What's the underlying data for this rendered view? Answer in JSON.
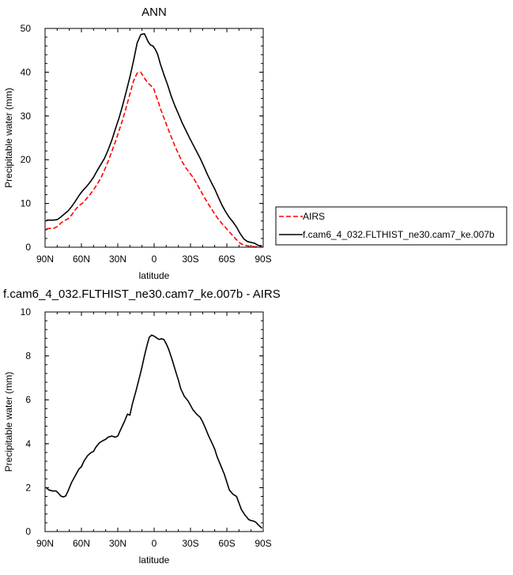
{
  "chart_data": [
    {
      "type": "line",
      "title": "ANN",
      "xlabel": "latitude",
      "ylabel": "Precipitable water (mm)",
      "xlim": [
        90,
        -90
      ],
      "ylim": [
        0,
        50
      ],
      "x_ticks": [
        {
          "value": 90,
          "label": "90N"
        },
        {
          "value": 60,
          "label": "60N"
        },
        {
          "value": 30,
          "label": "30N"
        },
        {
          "value": 0,
          "label": "0"
        },
        {
          "value": -30,
          "label": "30S"
        },
        {
          "value": -60,
          "label": "60S"
        },
        {
          "value": -90,
          "label": "90S"
        }
      ],
      "y_ticks": [
        0,
        10,
        20,
        30,
        40,
        50
      ],
      "grid": false,
      "legend_position": "right",
      "series": [
        {
          "name": "AIRS",
          "color": "#ff0000",
          "dash": "dashed",
          "x": [
            89,
            86,
            83,
            80,
            77,
            74,
            71,
            68,
            65,
            62,
            59,
            56,
            53,
            50,
            47,
            44,
            41,
            38,
            35,
            32,
            29,
            26,
            23,
            20,
            17,
            14,
            11,
            8,
            5,
            3,
            1,
            0,
            -1,
            -3,
            -5,
            -8,
            -11,
            -14,
            -17,
            -20,
            -23,
            -26,
            -29,
            -32,
            -35,
            -38,
            -41,
            -44,
            -47,
            -50,
            -53,
            -56,
            -59,
            -62,
            -65,
            -68,
            -71,
            -74,
            -77,
            -80,
            -83,
            -86,
            -89
          ],
          "y": [
            4.2,
            4.3,
            4.3,
            4.7,
            5.5,
            6.1,
            6.5,
            7.4,
            8.6,
            9.5,
            10.1,
            11.0,
            12.0,
            13.1,
            14.4,
            15.8,
            17.6,
            19.6,
            21.8,
            24.1,
            26.6,
            29.1,
            32.0,
            35.0,
            38.0,
            39.8,
            40.0,
            38.6,
            37.5,
            37.0,
            36.5,
            36.0,
            35.0,
            33.6,
            31.8,
            29.6,
            27.4,
            25.3,
            23.2,
            21.4,
            19.6,
            18.2,
            17.1,
            16.0,
            14.6,
            13.1,
            11.6,
            10.2,
            8.9,
            7.6,
            6.4,
            5.4,
            4.5,
            3.5,
            2.6,
            1.7,
            0.9,
            0.5,
            0.3,
            0.2,
            0.1,
            0.1,
            0.1
          ]
        },
        {
          "name": "f.cam6_4_032.FLTHIST_ne30.cam7_ke.007b",
          "color": "#000000",
          "dash": "solid",
          "x": [
            89,
            86,
            83,
            80,
            77,
            74,
            71,
            68,
            65,
            62,
            59,
            56,
            53,
            50,
            47,
            44,
            41,
            38,
            35,
            32,
            29,
            26,
            23,
            20,
            17,
            14,
            11,
            8,
            5,
            3,
            1,
            0,
            -1,
            -3,
            -5,
            -8,
            -11,
            -14,
            -17,
            -20,
            -23,
            -26,
            -29,
            -32,
            -35,
            -38,
            -41,
            -44,
            -47,
            -50,
            -53,
            -56,
            -59,
            -62,
            -65,
            -68,
            -71,
            -74,
            -77,
            -80,
            -83,
            -86,
            -89
          ],
          "y": [
            6.2,
            6.2,
            6.2,
            6.3,
            6.9,
            7.6,
            8.3,
            9.3,
            10.5,
            11.8,
            12.9,
            13.8,
            14.8,
            16.0,
            17.5,
            18.9,
            20.3,
            22.2,
            24.4,
            27.0,
            29.5,
            32.4,
            35.6,
            38.9,
            42.6,
            46.7,
            48.6,
            48.8,
            47.0,
            46.2,
            46.0,
            45.6,
            45.2,
            44.0,
            42.0,
            39.5,
            37.2,
            34.6,
            32.4,
            30.5,
            28.5,
            26.8,
            25.1,
            23.5,
            21.9,
            20.3,
            18.5,
            16.6,
            14.9,
            13.3,
            11.4,
            9.6,
            8.1,
            6.8,
            5.8,
            4.6,
            3.1,
            1.9,
            1.3,
            1.1,
            0.9,
            0.4,
            0.3
          ]
        }
      ]
    },
    {
      "type": "line",
      "title": "f.cam6_4_032.FLTHIST_ne30.cam7_ke.007b - AIRS",
      "xlabel": "latitude",
      "ylabel": "Precipitable water (mm)",
      "xlim": [
        90,
        -90
      ],
      "ylim": [
        0,
        10
      ],
      "x_ticks": [
        {
          "value": 90,
          "label": "90N"
        },
        {
          "value": 60,
          "label": "60N"
        },
        {
          "value": 30,
          "label": "30N"
        },
        {
          "value": 0,
          "label": "0"
        },
        {
          "value": -30,
          "label": "30S"
        },
        {
          "value": -60,
          "label": "60S"
        },
        {
          "value": -90,
          "label": "90S"
        }
      ],
      "y_ticks": [
        0,
        2,
        4,
        6,
        8,
        10
      ],
      "grid": false,
      "series": [
        {
          "name": "",
          "color": "#000000",
          "dash": "solid",
          "x": [
            89,
            87,
            84,
            81,
            79,
            77,
            75,
            73,
            71,
            68,
            65,
            62,
            60,
            58,
            55,
            52,
            50,
            48,
            45,
            42,
            40,
            38,
            35,
            32,
            30,
            28,
            25,
            22,
            20,
            18,
            15,
            12,
            10,
            8,
            6,
            4,
            2,
            0,
            -2,
            -4,
            -6,
            -8,
            -10,
            -12,
            -15,
            -18,
            -20,
            -22,
            -25,
            -28,
            -30,
            -32,
            -35,
            -38,
            -40,
            -42,
            -45,
            -48,
            -50,
            -52,
            -55,
            -58,
            -60,
            -62,
            -65,
            -68,
            -70,
            -72,
            -75,
            -78,
            -80,
            -82,
            -84,
            -86,
            -88,
            -89
          ],
          "y": [
            2.0,
            1.9,
            1.85,
            1.85,
            1.75,
            1.62,
            1.58,
            1.62,
            1.85,
            2.25,
            2.55,
            2.85,
            2.95,
            3.2,
            3.45,
            3.6,
            3.65,
            3.85,
            4.05,
            4.15,
            4.2,
            4.3,
            4.35,
            4.3,
            4.35,
            4.6,
            4.95,
            5.35,
            5.3,
            5.8,
            6.4,
            7.05,
            7.5,
            8.0,
            8.45,
            8.85,
            8.95,
            8.9,
            8.82,
            8.75,
            8.78,
            8.75,
            8.55,
            8.3,
            7.8,
            7.25,
            6.9,
            6.5,
            6.15,
            5.95,
            5.75,
            5.55,
            5.35,
            5.2,
            5.0,
            4.75,
            4.35,
            4.0,
            3.75,
            3.4,
            3.0,
            2.6,
            2.25,
            1.9,
            1.7,
            1.6,
            1.3,
            1.0,
            0.75,
            0.55,
            0.5,
            0.48,
            0.42,
            0.3,
            0.2,
            0.15
          ]
        }
      ]
    }
  ]
}
